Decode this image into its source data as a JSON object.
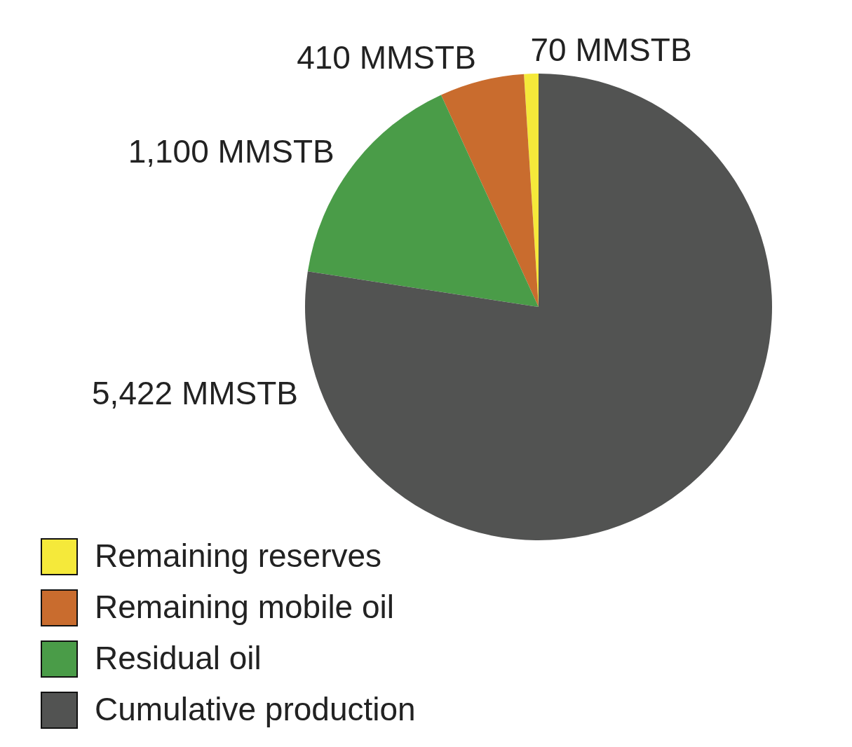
{
  "chart_data": {
    "type": "pie",
    "categories": [
      "Remaining reserves",
      "Remaining mobile oil",
      "Residual oil",
      "Cumulative production"
    ],
    "values": [
      70,
      410,
      1100,
      5422
    ],
    "value_labels": [
      "70 MMSTB",
      "410 MMSTB",
      "1,100 MMSTB",
      "5,422 MMSTB"
    ],
    "colors": [
      "#f5e93a",
      "#c96c2e",
      "#4a9c48",
      "#525352"
    ],
    "legend": "bottom left"
  }
}
